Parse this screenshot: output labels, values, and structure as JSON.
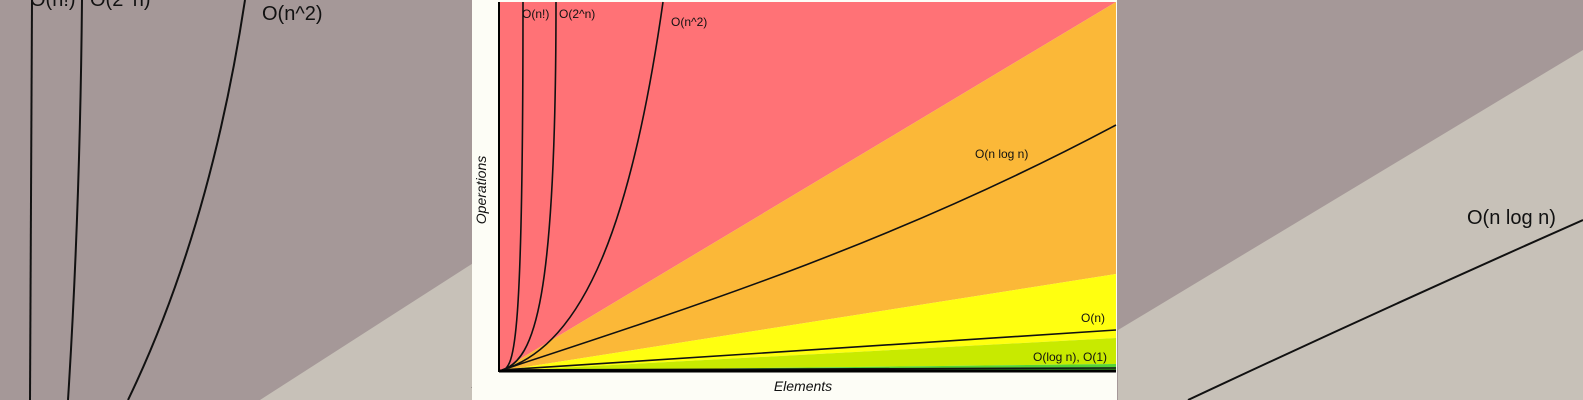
{
  "colors": {
    "bg_blur": "#a59898",
    "bg_blur_light": "#c7c1b8",
    "panel": "#fdfdf6",
    "horrible": "#ff7276",
    "bad": "#fbb838",
    "fair": "#ffff10",
    "good": "#c8ea00",
    "excellent": "#53d435",
    "axis": "#000000",
    "curve": "#111111"
  },
  "chart_data": {
    "type": "line",
    "title": "",
    "xlabel": "Elements",
    "ylabel": "Operations",
    "xlim": [
      0,
      100
    ],
    "ylim": [
      0,
      1000
    ],
    "grid": false,
    "legend": "none",
    "series": [
      {
        "name": "O(n!)",
        "label": "O(n!)"
      },
      {
        "name": "O(2^n)",
        "label": "O(2^n)"
      },
      {
        "name": "O(n^2)",
        "label": "O(n^2)"
      },
      {
        "name": "O(n log n)",
        "label": "O(n log n)"
      },
      {
        "name": "O(n)",
        "label": "O(n)"
      },
      {
        "name": "O(log n), O(1)",
        "label": "O(log n), O(1)"
      }
    ]
  },
  "background": {
    "labels": {
      "factorial": "O(n!)",
      "exponential": "O(2^n)",
      "quadratic": "O(n^2)",
      "nlogn": "O(n log n)"
    }
  }
}
